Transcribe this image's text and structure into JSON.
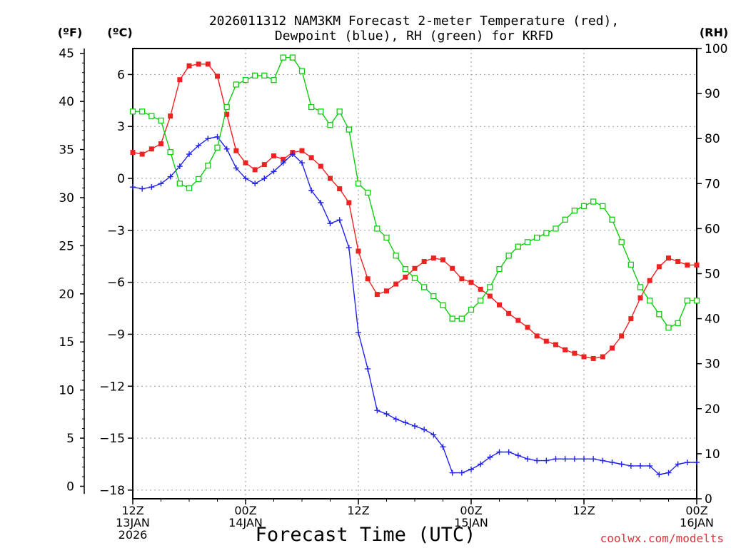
{
  "chart_data": {
    "type": "line",
    "title_line1": "2026011312 NAM3KM Forecast 2-meter Temperature (red),",
    "title_line2": "Dewpoint (blue), RH (green) for KRFD",
    "xlabel": "Forecast Time (UTC)",
    "credit": "coolwx.com/modelts",
    "unit_f": "(ºF)",
    "unit_c": "(ºC)",
    "unit_rh": "(RH)",
    "x_range_hours": [
      0,
      60
    ],
    "x_ticks": [
      {
        "hour": 0,
        "line1": "12Z",
        "line2": "13JAN",
        "line3": "2026"
      },
      {
        "hour": 12,
        "line1": "00Z",
        "line2": "14JAN",
        "line3": ""
      },
      {
        "hour": 24,
        "line1": "12Z",
        "line2": "",
        "line3": ""
      },
      {
        "hour": 36,
        "line1": "00Z",
        "line2": "15JAN",
        "line3": ""
      },
      {
        "hour": 48,
        "line1": "12Z",
        "line2": "",
        "line3": ""
      },
      {
        "hour": 60,
        "line1": "00Z",
        "line2": "16JAN",
        "line3": ""
      }
    ],
    "celsius_axis": {
      "range": [
        -18.5,
        7.5
      ],
      "ticks": [
        6,
        3,
        0,
        -3,
        -6,
        -9,
        -12,
        -15,
        -18
      ],
      "labels": [
        "6",
        "3",
        "0",
        "−3",
        "−6",
        "−9",
        "−12",
        "−15",
        "−18"
      ]
    },
    "fahrenheit_axis": {
      "ticks": [
        45,
        40,
        35,
        30,
        25,
        20,
        15,
        10,
        5,
        0
      ],
      "labels": [
        "45",
        "40",
        "35",
        "30",
        "25",
        "20",
        "15",
        "10",
        "5",
        "0"
      ]
    },
    "rh_axis": {
      "range": [
        0,
        100
      ],
      "ticks": [
        100,
        90,
        80,
        70,
        60,
        50,
        40,
        30,
        20,
        10,
        0
      ],
      "labels": [
        "100",
        "90",
        "80",
        "70",
        "60",
        "50",
        "40",
        "30",
        "20",
        "10",
        "0"
      ]
    },
    "series": [
      {
        "name": "Temperature",
        "units": "C",
        "color": "#ee2222",
        "marker": "filled-square",
        "hours": [
          0,
          1,
          2,
          3,
          4,
          5,
          6,
          7,
          8,
          9,
          10,
          11,
          12,
          13,
          14,
          15,
          16,
          17,
          18,
          19,
          20,
          21,
          22,
          23,
          24,
          25,
          26,
          27,
          28,
          29,
          30,
          31,
          32,
          33,
          34,
          35,
          36,
          37,
          38,
          39,
          40,
          41,
          42,
          43,
          44,
          45,
          46,
          47,
          48,
          49,
          50,
          51,
          52,
          53,
          54,
          55,
          56,
          57,
          58,
          59,
          60
        ],
        "values": [
          1.5,
          1.4,
          1.7,
          2.0,
          3.6,
          5.7,
          6.5,
          6.6,
          6.6,
          5.9,
          3.7,
          1.6,
          0.9,
          0.5,
          0.8,
          1.3,
          1.1,
          1.5,
          1.6,
          1.2,
          0.7,
          0.0,
          -0.6,
          -1.4,
          -4.2,
          -5.8,
          -6.7,
          -6.5,
          -6.1,
          -5.7,
          -5.2,
          -4.8,
          -4.6,
          -4.7,
          -5.2,
          -5.8,
          -6.0,
          -6.4,
          -6.8,
          -7.3,
          -7.8,
          -8.2,
          -8.6,
          -9.1,
          -9.4,
          -9.6,
          -9.9,
          -10.1,
          -10.3,
          -10.4,
          -10.3,
          -9.8,
          -9.1,
          -8.1,
          -6.9,
          -5.9,
          -5.1,
          -4.6,
          -4.8,
          -5.0,
          -5.0
        ]
      },
      {
        "name": "Dewpoint",
        "units": "C",
        "color": "#2222ee",
        "marker": "plus",
        "hours": [
          0,
          1,
          2,
          3,
          4,
          5,
          6,
          7,
          8,
          9,
          10,
          11,
          12,
          13,
          14,
          15,
          16,
          17,
          18,
          19,
          20,
          21,
          22,
          23,
          24,
          25,
          26,
          27,
          28,
          29,
          30,
          31,
          32,
          33,
          34,
          35,
          36,
          37,
          38,
          39,
          40,
          41,
          42,
          43,
          44,
          45,
          46,
          47,
          48,
          49,
          50,
          51,
          52,
          53,
          54,
          55,
          56,
          57,
          58,
          59,
          60
        ],
        "values": [
          -0.5,
          -0.6,
          -0.5,
          -0.3,
          0.1,
          0.7,
          1.4,
          1.9,
          2.3,
          2.4,
          1.7,
          0.6,
          0.0,
          -0.3,
          0.0,
          0.4,
          0.9,
          1.4,
          0.9,
          -0.7,
          -1.4,
          -2.6,
          -2.4,
          -4.0,
          -8.9,
          -11.0,
          -13.4,
          -13.6,
          -13.9,
          -14.1,
          -14.3,
          -14.5,
          -14.8,
          -15.5,
          -17.0,
          -17.0,
          -16.8,
          -16.5,
          -16.1,
          -15.8,
          -15.8,
          -16.0,
          -16.2,
          -16.3,
          -16.3,
          -16.2,
          -16.2,
          -16.2,
          -16.2,
          -16.2,
          -16.3,
          -16.4,
          -16.5,
          -16.6,
          -16.6,
          -16.6,
          -17.1,
          -17.0,
          -16.5,
          -16.4,
          -16.4
        ]
      },
      {
        "name": "Relative Humidity",
        "units": "%",
        "color": "#11cc11",
        "marker": "open-square",
        "hours": [
          0,
          1,
          2,
          3,
          4,
          5,
          6,
          7,
          8,
          9,
          10,
          11,
          12,
          13,
          14,
          15,
          16,
          17,
          18,
          19,
          20,
          21,
          22,
          23,
          24,
          25,
          26,
          27,
          28,
          29,
          30,
          31,
          32,
          33,
          34,
          35,
          36,
          37,
          38,
          39,
          40,
          41,
          42,
          43,
          44,
          45,
          46,
          47,
          48,
          49,
          50,
          51,
          52,
          53,
          54,
          55,
          56,
          57,
          58,
          59,
          60
        ],
        "values": [
          86,
          86,
          85,
          84,
          77,
          70,
          69,
          71,
          74,
          78,
          87,
          92,
          93,
          94,
          94,
          93,
          98,
          98,
          95,
          87,
          86,
          83,
          86,
          82,
          70,
          68,
          60,
          58,
          54,
          51,
          49,
          47,
          45,
          43,
          40,
          40,
          42,
          44,
          47,
          51,
          54,
          56,
          57,
          58,
          59,
          60,
          62,
          64,
          65,
          66,
          65,
          62,
          57,
          52,
          47,
          44,
          41,
          38,
          39,
          44,
          44
        ]
      }
    ]
  }
}
